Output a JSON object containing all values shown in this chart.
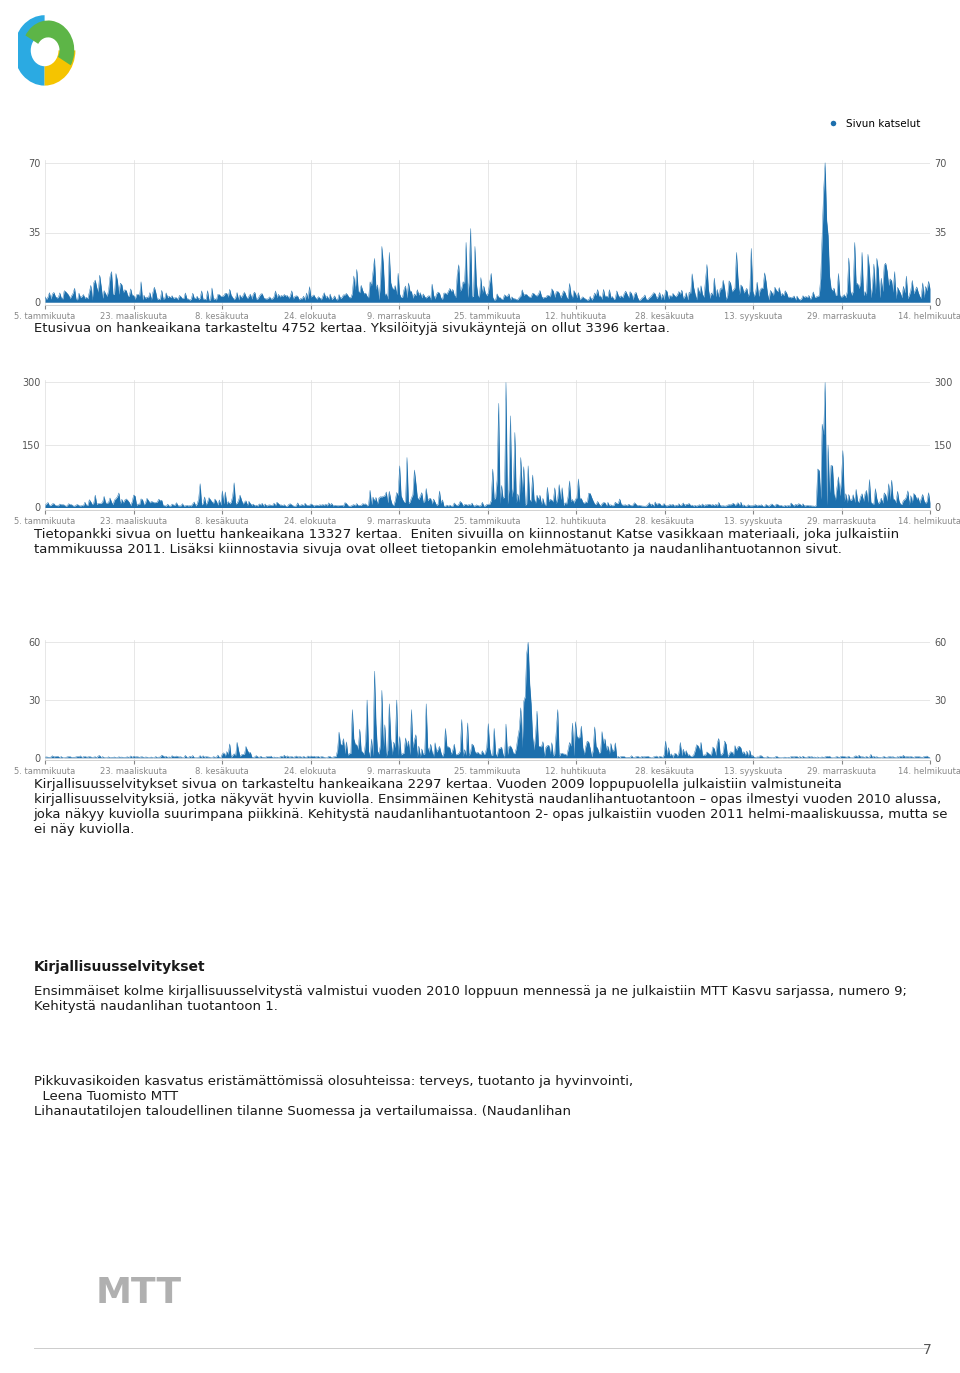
{
  "chart1": {
    "y_max": 70,
    "y_ticks": [
      0,
      35,
      70
    ],
    "x_labels": [
      "5. tammikuuta",
      "23. maaliskuuta",
      "8. kesäkuuta",
      "24. elokuuta",
      "9. marraskuuta",
      "25. tammikuuta",
      "12. huhtikuuta",
      "28. kesäkuuta",
      "13. syyskuuta",
      "29. marraskuuta",
      "14. helmikuuta"
    ],
    "legend_label": "Sivun katselut",
    "color": "#1c6fad"
  },
  "chart2": {
    "y_max": 300,
    "y_ticks": [
      0,
      150,
      300
    ],
    "x_labels": [
      "5. tammikuuta",
      "23. maaliskuuta",
      "8. kesäkuuta",
      "24. elokuuta",
      "9. marraskuuta",
      "25. tammikuuta",
      "12. huhtikuuta",
      "28. kesäkuuta",
      "13. syyskuuta",
      "29. marraskuuta",
      "14. helmikuuta"
    ],
    "color": "#1c6fad"
  },
  "chart3": {
    "y_max": 60,
    "y_ticks": [
      0,
      30,
      60
    ],
    "x_labels": [
      "5. tammikuuta",
      "23. maaliskuuta",
      "8. kesäkuuta",
      "24. elokuuta",
      "9. marraskuuta",
      "25. tammikuuta",
      "12. huhtikuuta",
      "28. kesäkuuta",
      "13. syyskuuta",
      "29. marraskuuta",
      "14. helmikuuta"
    ],
    "color": "#1c6fad"
  },
  "text1": "Etusivua on hankeaikana tarkasteltu 4752 kertaa. Yksilöityjä sivukäyntejä on ollut 3396 kertaa.",
  "text2": "Tietopankki sivua on luettu hankeaikana 13327 kertaa.  Eniten sivuilla on kiinnostanut Katse vasikkaan materiaali, joka julkaistiin tammikuussa 2011. Lisäksi kiinnostavia sivuja ovat olleet tietopankin emolehmätuotanto ja naudanlihantuotannon sivut.",
  "text3": "Kirjallisuusselvitykset sivua on tarkasteltu hankeaikana 2297 kertaa. Vuoden 2009 loppupuolella julkaistiin valmistuneita kirjallisuusselvityksiä, jotka näkyvät hyvin kuviolla. Ensimmäinen Kehitystä naudanlihantuotantoon – opas ilmestyi vuoden 2010 alussa, joka näkyy kuviolla suurimpana piikkinä. Kehitystä naudanlihantuotantoon 2- opas julkaistiin vuoden 2011 helmi-maaliskuussa, mutta se ei näy kuviolla.",
  "text4_header": "Kirjallisuusselvitykset",
  "text4": "Ensimmäiset kolme kirjallisuusselvitystä valmistui vuoden 2010 loppuun mennessä ja ne julkaistiin MTT Kasvu sarjassa, numero 9; Kehitystä naudanlihan tuotantoon 1.",
  "text5": "Pikkuvasikoiden kasvatus eristämättömissä olosuhteissa: terveys, tuotanto ja hyvinvointi,\n  Leena Tuomisto MTT\nLihanautatilojen taloudellinen tilanne Suomessa ja vertailumaissa. (Naudanlihan",
  "page_number": "7",
  "bg_color": "#ffffff",
  "text_color": "#1a1a1a",
  "axis_color": "#cccccc",
  "font_size": 9.5,
  "line_color": "#1c6fad",
  "logo_mtt_color": "#aaaaaa",
  "logo_blue": "#2baae2",
  "logo_yellow": "#f5c400",
  "logo_green": "#5db547"
}
